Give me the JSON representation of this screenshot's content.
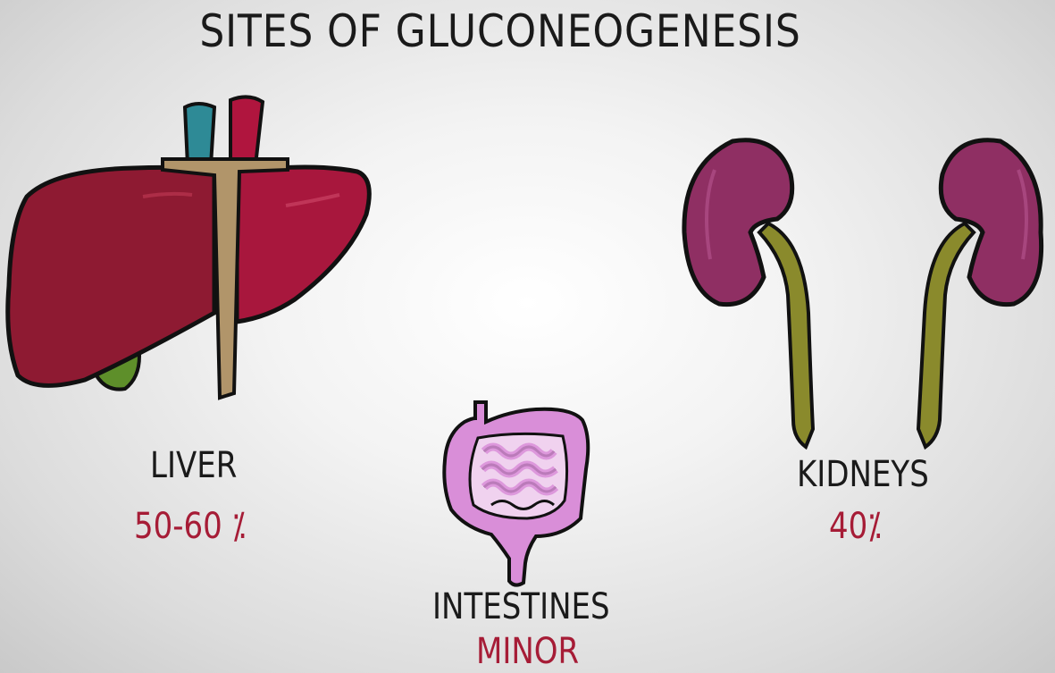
{
  "title": "SITES OF GLUCONEOGENESIS",
  "colors": {
    "liver": "#8e1a32",
    "kidney": "#8f2f63",
    "ureter": "#8a8a2c",
    "intestine": "#d98ed8",
    "value_text": "#a61c36"
  },
  "sites": {
    "liver": {
      "label": "LIVER",
      "value": "50-60 ⁒"
    },
    "kidneys": {
      "label": "KIDNEYS",
      "value": "40⁒"
    },
    "intestines": {
      "label": "INTESTINES",
      "value": "MINOR"
    }
  }
}
